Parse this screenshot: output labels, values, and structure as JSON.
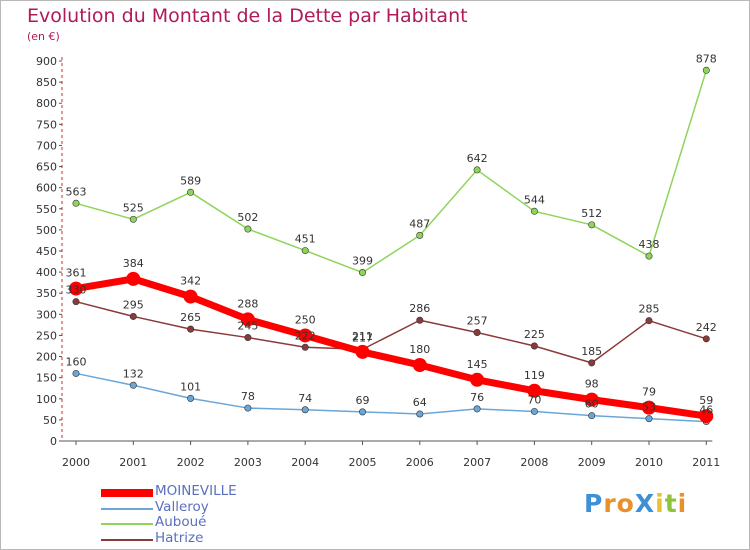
{
  "title": "Evolution du Montant de la Dette par Habitant",
  "unit": "(en €)",
  "logo": {
    "text": "ProXiti",
    "letters": [
      {
        "ch": "P",
        "color": "#3d8fd6"
      },
      {
        "ch": "r",
        "color": "#e8912b"
      },
      {
        "ch": "o",
        "color": "#e8912b"
      },
      {
        "ch": "X",
        "color": "#3d8fd6"
      },
      {
        "ch": "i",
        "color": "#e8c12b"
      },
      {
        "ch": "t",
        "color": "#8cc43c"
      },
      {
        "ch": "i",
        "color": "#e8912b"
      }
    ]
  },
  "chart_data": {
    "type": "line",
    "title": "Evolution du Montant de la Dette par Habitant",
    "ylabel": "(en €)",
    "xlabel": "",
    "x": [
      "2000",
      "2001",
      "2002",
      "2003",
      "2004",
      "2005",
      "2006",
      "2007",
      "2008",
      "2009",
      "2010",
      "2011"
    ],
    "ylim": [
      0,
      900
    ],
    "yticks": [
      0,
      50,
      100,
      150,
      200,
      250,
      300,
      350,
      400,
      450,
      500,
      550,
      600,
      650,
      700,
      750,
      800,
      850,
      900
    ],
    "grid": false,
    "legend_position": "bottom-left",
    "series": [
      {
        "name": "MOINEVILLE",
        "color": "#ff0000",
        "width": 7,
        "marker": 6.5,
        "values": [
          361,
          384,
          342,
          288,
          250,
          211,
          180,
          145,
          119,
          98,
          79,
          59
        ]
      },
      {
        "name": "Valleroy",
        "color": "#6aa6d8",
        "width": 1.5,
        "marker": 3.2,
        "values": [
          160,
          132,
          101,
          78,
          74,
          69,
          64,
          76,
          70,
          60,
          53,
          46
        ]
      },
      {
        "name": "Auboué",
        "color": "#8ed45a",
        "width": 1.5,
        "marker": 3.2,
        "values": [
          563,
          525,
          589,
          502,
          451,
          399,
          487,
          642,
          544,
          512,
          438,
          878
        ]
      },
      {
        "name": "Hatrize",
        "color": "#8b3a3a",
        "width": 1.5,
        "marker": 3.2,
        "values": [
          330,
          295,
          265,
          245,
          222,
          217,
          286,
          257,
          225,
          185,
          285,
          242
        ]
      }
    ]
  }
}
